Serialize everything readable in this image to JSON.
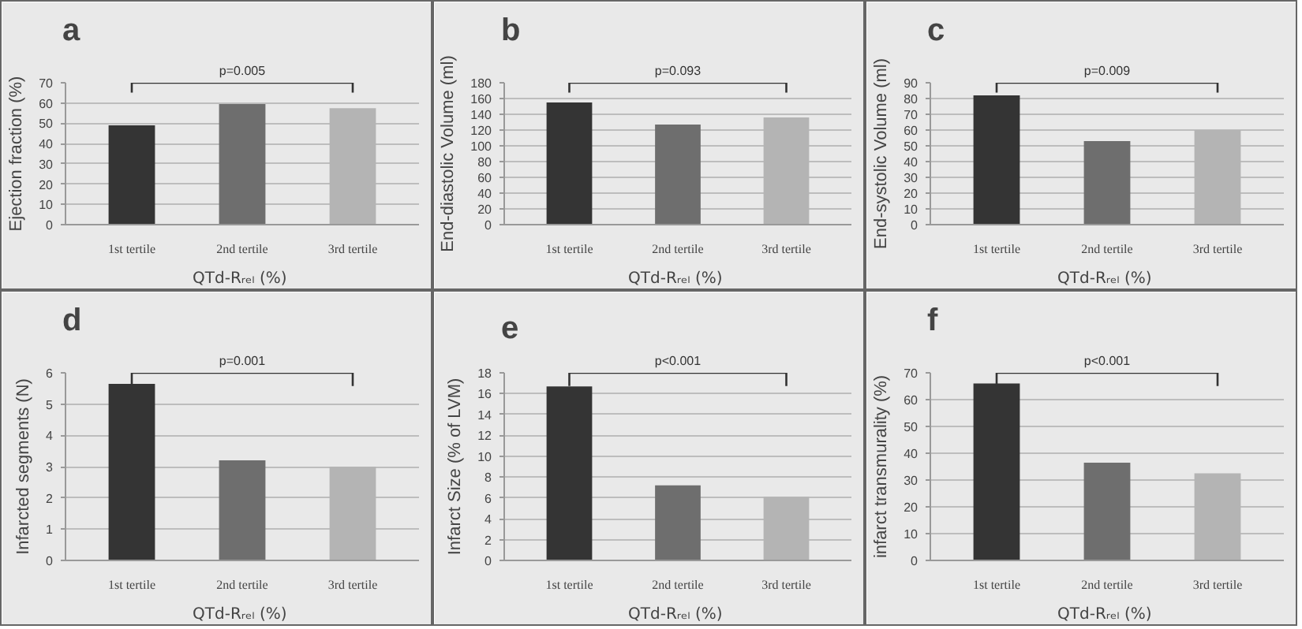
{
  "chart_data": [
    {
      "type": "bar",
      "title": "a",
      "xlabel": "QTd-Rᵣₑₗ  (%)",
      "ylabel": "Ejection fraction (%)",
      "categories": [
        "1st tertile",
        "2nd tertile",
        "3rd tertile"
      ],
      "values": [
        49,
        59.5,
        57.5
      ],
      "colors": [
        "#343434",
        "#6e6e6e",
        "#b4b4b4"
      ],
      "ylim": [
        0,
        70
      ],
      "yticks": [
        0,
        10,
        20,
        30,
        40,
        50,
        60,
        70
      ],
      "grid": "y",
      "annotations": [
        "p=0.005"
      ]
    },
    {
      "type": "bar",
      "title": "b",
      "xlabel": "QTd-Rᵣₑₗ  (%)",
      "ylabel": "End-diastolic Volume (ml)",
      "categories": [
        "1st tertile",
        "2nd tertile",
        "3rd tertile"
      ],
      "values": [
        155,
        127,
        136
      ],
      "colors": [
        "#343434",
        "#6e6e6e",
        "#b4b4b4"
      ],
      "ylim": [
        0,
        180
      ],
      "yticks": [
        0,
        20,
        40,
        60,
        80,
        100,
        120,
        140,
        160,
        180
      ],
      "grid": "y",
      "annotations": [
        "p=0.093"
      ]
    },
    {
      "type": "bar",
      "title": "c",
      "xlabel": "QTd-Rᵣₑₗ  (%)",
      "ylabel": "End-systolic Volume (ml)",
      "categories": [
        "1st tertile",
        "2nd tertile",
        "3rd tertile"
      ],
      "values": [
        82,
        53,
        60
      ],
      "colors": [
        "#343434",
        "#6e6e6e",
        "#b4b4b4"
      ],
      "ylim": [
        0,
        90
      ],
      "yticks": [
        0,
        10,
        20,
        30,
        40,
        50,
        60,
        70,
        80,
        90
      ],
      "grid": "y",
      "annotations": [
        "p=0.009"
      ]
    },
    {
      "type": "bar",
      "title": "d",
      "xlabel": "QTd-Rᵣₑₗ  (%)",
      "ylabel": "Infarcted segments (N)",
      "categories": [
        "1st tertile",
        "2nd tertile",
        "3rd tertile"
      ],
      "values": [
        5.65,
        3.2,
        3.0
      ],
      "colors": [
        "#343434",
        "#6e6e6e",
        "#b4b4b4"
      ],
      "ylim": [
        0,
        6
      ],
      "yticks": [
        0,
        1,
        2,
        3,
        4,
        5,
        6
      ],
      "grid": "y",
      "annotations": [
        "p=0.001"
      ]
    },
    {
      "type": "bar",
      "title": "e",
      "xlabel": "QTd-Rᵣₑₗ  (%)",
      "ylabel": "Infarct Size (% of LVM)",
      "categories": [
        "1st tertile",
        "2nd tertile",
        "3rd tertile"
      ],
      "values": [
        16.7,
        7.2,
        6.1
      ],
      "colors": [
        "#343434",
        "#6e6e6e",
        "#b4b4b4"
      ],
      "ylim": [
        0,
        18
      ],
      "yticks": [
        0,
        2,
        4,
        6,
        8,
        10,
        12,
        14,
        16,
        18
      ],
      "grid": "y",
      "annotations": [
        "p<0.001"
      ]
    },
    {
      "type": "bar",
      "title": "f",
      "xlabel": "QTd-Rᵣₑₗ  (%)",
      "ylabel": "infarct transmurality (%)",
      "categories": [
        "1st tertile",
        "2nd tertile",
        "3rd tertile"
      ],
      "values": [
        66,
        36.5,
        32.5
      ],
      "colors": [
        "#343434",
        "#6e6e6e",
        "#b4b4b4"
      ],
      "ylim": [
        0,
        70
      ],
      "yticks": [
        0,
        10,
        20,
        30,
        40,
        50,
        60,
        70
      ],
      "grid": "y",
      "annotations": [
        "p<0.001"
      ]
    }
  ]
}
